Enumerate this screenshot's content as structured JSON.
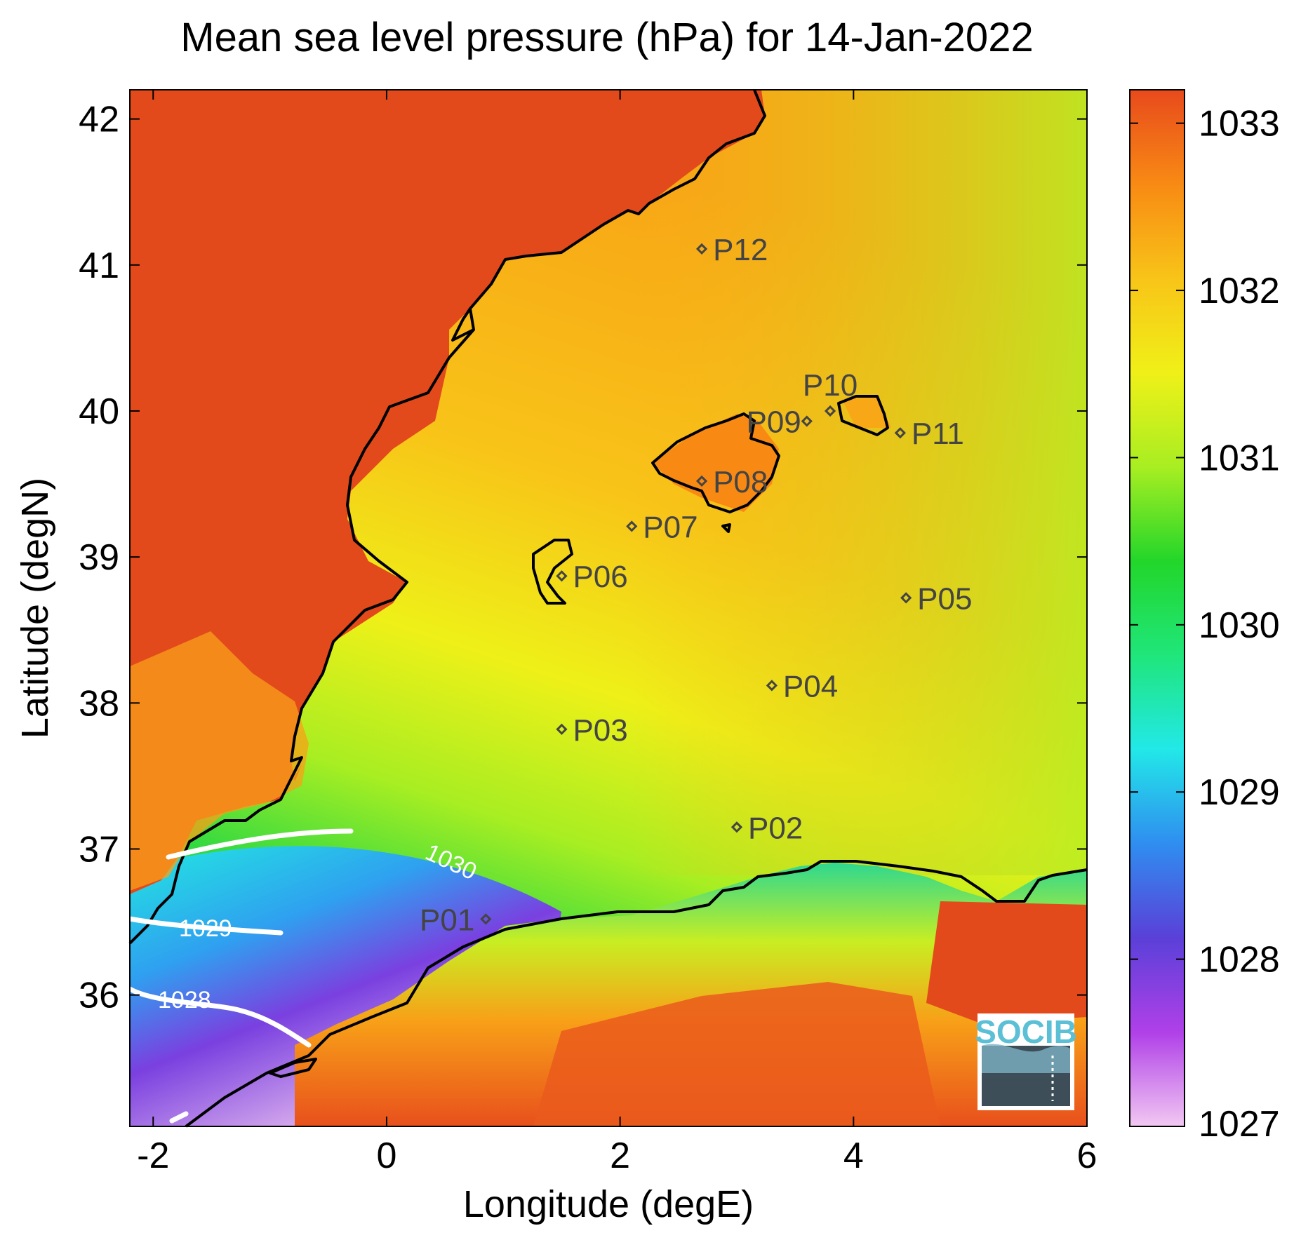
{
  "title": "Mean sea level pressure (hPa) for 14-Jan-2022",
  "xlabel": "Longitude (degE)",
  "ylabel": "Latitude (degN)",
  "x_ticks": [
    "-2",
    "0",
    "2",
    "4",
    "6"
  ],
  "y_ticks": [
    "36",
    "37",
    "38",
    "39",
    "40",
    "41",
    "42"
  ],
  "colorbar": {
    "ticks": [
      "1027",
      "1028",
      "1029",
      "1030",
      "1031",
      "1032",
      "1033"
    ],
    "range": [
      1027,
      1033.2
    ],
    "colormap": [
      "#f2c8f2",
      "#b040e8",
      "#5a40d8",
      "#2f8ef0",
      "#22e8e8",
      "#20e67a",
      "#22d62a",
      "#a8ee22",
      "#f0f018",
      "#f8c418",
      "#f88a14",
      "#e84a1c"
    ]
  },
  "stations": [
    {
      "id": "P01",
      "lon": 0.85,
      "lat": 36.52
    },
    {
      "id": "P02",
      "lon": 3.0,
      "lat": 37.15
    },
    {
      "id": "P03",
      "lon": 1.5,
      "lat": 37.82
    },
    {
      "id": "P04",
      "lon": 3.3,
      "lat": 38.12
    },
    {
      "id": "P05",
      "lon": 4.45,
      "lat": 38.72
    },
    {
      "id": "P06",
      "lon": 1.5,
      "lat": 38.87
    },
    {
      "id": "P07",
      "lon": 2.1,
      "lat": 39.21
    },
    {
      "id": "P08",
      "lon": 2.7,
      "lat": 39.52
    },
    {
      "id": "P09",
      "lon": 3.6,
      "lat": 39.93
    },
    {
      "id": "P10",
      "lon": 3.8,
      "lat": 40.0
    },
    {
      "id": "P11",
      "lon": 4.4,
      "lat": 39.85
    },
    {
      "id": "P12",
      "lon": 2.7,
      "lat": 41.11
    }
  ],
  "contours": [
    {
      "label": "1030"
    },
    {
      "label": "1029"
    },
    {
      "label": "1028"
    }
  ],
  "logo": {
    "text": "SOCIB"
  }
}
